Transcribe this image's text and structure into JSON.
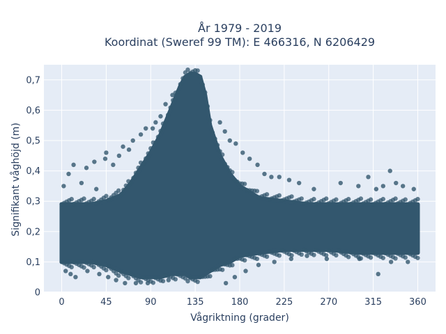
{
  "chart_data": {
    "type": "scatter",
    "title_lines": [
      "År 1979 - 2019",
      "Koordinat (Sweref 99 TM): E 466316, N 6206429"
    ],
    "xlabel": "Vågriktning (grader)",
    "ylabel": "Signifikant våghöjd (m)",
    "xlim": [
      -18,
      378
    ],
    "ylim": [
      0,
      0.75
    ],
    "x_ticks": [
      0,
      45,
      90,
      135,
      180,
      225,
      270,
      315,
      360
    ],
    "x_tick_labels": [
      "0",
      "45",
      "90",
      "135",
      "180",
      "225",
      "270",
      "315",
      "360"
    ],
    "y_ticks": [
      0,
      0.1,
      0.2,
      0.3,
      0.4,
      0.5,
      0.6,
      0.7
    ],
    "y_tick_labels": [
      "0",
      "0,1",
      "0,2",
      "0,3",
      "0,4",
      "0,5",
      "0,6",
      "0,7"
    ],
    "grid": true,
    "legend": "none",
    "point_color": "#33576e",
    "plot_background": "#e5ecf6",
    "dense_band": {
      "x": [
        0,
        10,
        20,
        30,
        45,
        60,
        70,
        80,
        90,
        100,
        110,
        120,
        125,
        130,
        135,
        140,
        145,
        150,
        160,
        170,
        180,
        200,
        225,
        250,
        270,
        300,
        315,
        330,
        345,
        360
      ],
      "y_low": [
        0.1,
        0.1,
        0.1,
        0.1,
        0.09,
        0.07,
        0.06,
        0.05,
        0.05,
        0.05,
        0.06,
        0.06,
        0.06,
        0.05,
        0.05,
        0.05,
        0.06,
        0.07,
        0.09,
        0.1,
        0.12,
        0.13,
        0.14,
        0.14,
        0.14,
        0.13,
        0.13,
        0.13,
        0.13,
        0.13
      ],
      "y_high": [
        0.29,
        0.29,
        0.29,
        0.29,
        0.3,
        0.32,
        0.36,
        0.41,
        0.46,
        0.52,
        0.6,
        0.68,
        0.71,
        0.72,
        0.72,
        0.71,
        0.65,
        0.55,
        0.45,
        0.39,
        0.35,
        0.31,
        0.3,
        0.29,
        0.29,
        0.29,
        0.29,
        0.29,
        0.29,
        0.29
      ]
    },
    "outliers": [
      {
        "x": 2,
        "y": 0.35
      },
      {
        "x": 4,
        "y": 0.07
      },
      {
        "x": 7,
        "y": 0.39
      },
      {
        "x": 9,
        "y": 0.06
      },
      {
        "x": 12,
        "y": 0.42
      },
      {
        "x": 14,
        "y": 0.05
      },
      {
        "x": 20,
        "y": 0.36
      },
      {
        "x": 25,
        "y": 0.41
      },
      {
        "x": 26,
        "y": 0.07
      },
      {
        "x": 33,
        "y": 0.43
      },
      {
        "x": 35,
        "y": 0.34
      },
      {
        "x": 38,
        "y": 0.06
      },
      {
        "x": 44,
        "y": 0.44
      },
      {
        "x": 45,
        "y": 0.46
      },
      {
        "x": 47,
        "y": 0.05
      },
      {
        "x": 52,
        "y": 0.42
      },
      {
        "x": 55,
        "y": 0.04
      },
      {
        "x": 58,
        "y": 0.45
      },
      {
        "x": 62,
        "y": 0.48
      },
      {
        "x": 64,
        "y": 0.03
      },
      {
        "x": 68,
        "y": 0.47
      },
      {
        "x": 72,
        "y": 0.5
      },
      {
        "x": 75,
        "y": 0.03
      },
      {
        "x": 80,
        "y": 0.52
      },
      {
        "x": 85,
        "y": 0.54
      },
      {
        "x": 87,
        "y": 0.03
      },
      {
        "x": 92,
        "y": 0.54
      },
      {
        "x": 95,
        "y": 0.56
      },
      {
        "x": 100,
        "y": 0.58
      },
      {
        "x": 105,
        "y": 0.62
      },
      {
        "x": 108,
        "y": 0.04
      },
      {
        "x": 112,
        "y": 0.65
      },
      {
        "x": 160,
        "y": 0.56
      },
      {
        "x": 165,
        "y": 0.53
      },
      {
        "x": 166,
        "y": 0.03
      },
      {
        "x": 170,
        "y": 0.5
      },
      {
        "x": 175,
        "y": 0.05
      },
      {
        "x": 176,
        "y": 0.49
      },
      {
        "x": 183,
        "y": 0.46
      },
      {
        "x": 186,
        "y": 0.07
      },
      {
        "x": 190,
        "y": 0.44
      },
      {
        "x": 198,
        "y": 0.42
      },
      {
        "x": 199,
        "y": 0.09
      },
      {
        "x": 205,
        "y": 0.39
      },
      {
        "x": 212,
        "y": 0.38
      },
      {
        "x": 215,
        "y": 0.1
      },
      {
        "x": 220,
        "y": 0.38
      },
      {
        "x": 230,
        "y": 0.37
      },
      {
        "x": 232,
        "y": 0.11
      },
      {
        "x": 240,
        "y": 0.36
      },
      {
        "x": 248,
        "y": 0.12
      },
      {
        "x": 255,
        "y": 0.34
      },
      {
        "x": 268,
        "y": 0.11
      },
      {
        "x": 282,
        "y": 0.36
      },
      {
        "x": 300,
        "y": 0.35
      },
      {
        "x": 301,
        "y": 0.11
      },
      {
        "x": 310,
        "y": 0.38
      },
      {
        "x": 318,
        "y": 0.34
      },
      {
        "x": 320,
        "y": 0.06
      },
      {
        "x": 325,
        "y": 0.35
      },
      {
        "x": 332,
        "y": 0.4
      },
      {
        "x": 333,
        "y": 0.1
      },
      {
        "x": 338,
        "y": 0.36
      },
      {
        "x": 345,
        "y": 0.35
      },
      {
        "x": 350,
        "y": 0.1
      },
      {
        "x": 356,
        "y": 0.34
      }
    ]
  }
}
